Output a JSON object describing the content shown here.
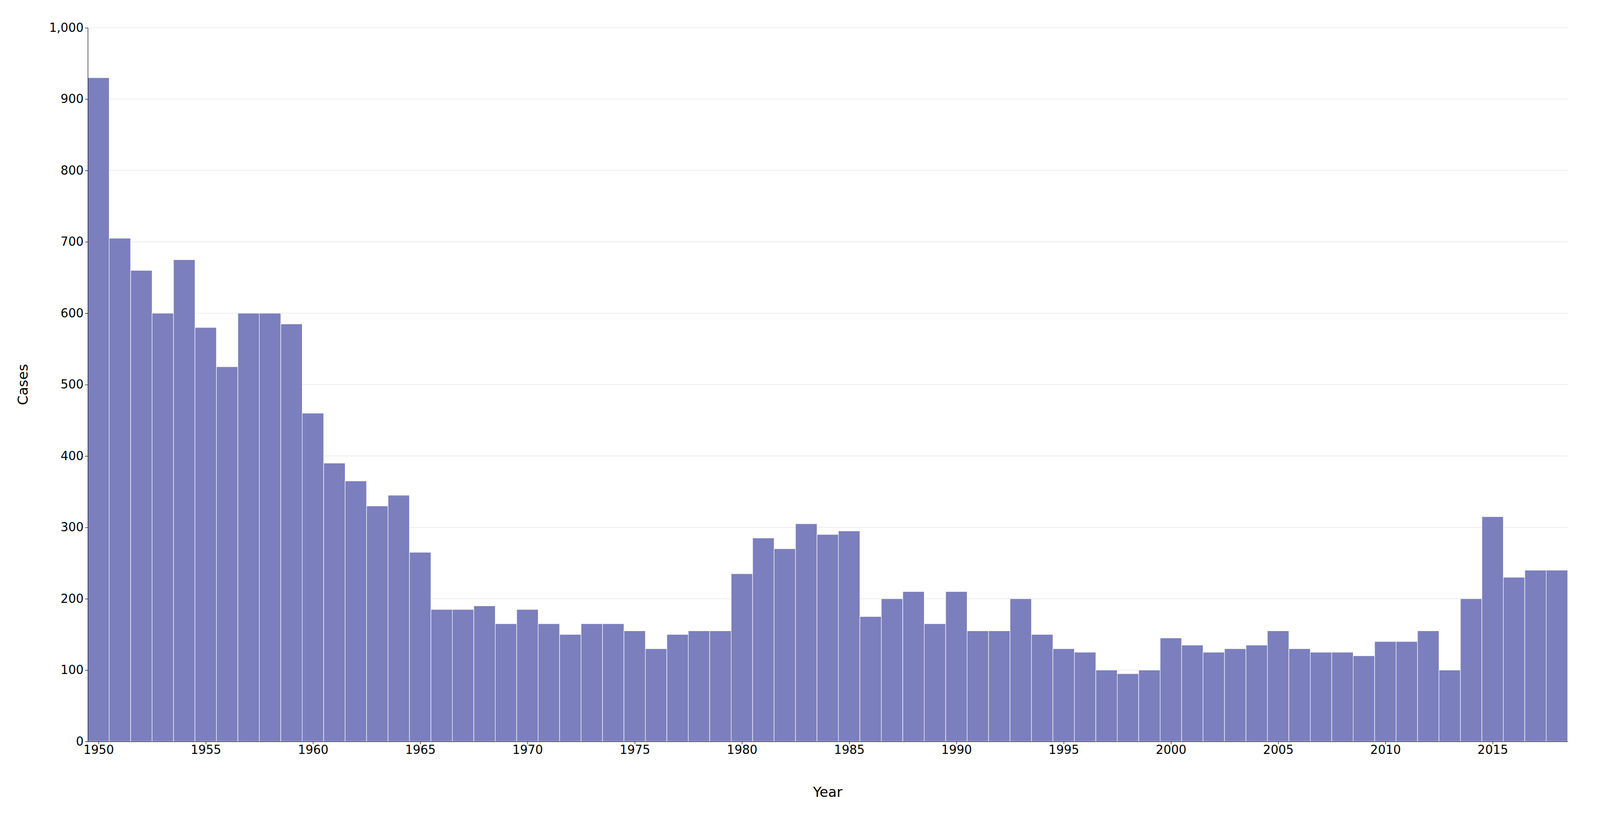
{
  "chart_data": {
    "type": "bar",
    "x": [
      1950,
      1951,
      1952,
      1953,
      1954,
      1955,
      1956,
      1957,
      1958,
      1959,
      1960,
      1961,
      1962,
      1963,
      1964,
      1965,
      1966,
      1967,
      1968,
      1969,
      1970,
      1971,
      1972,
      1973,
      1974,
      1975,
      1976,
      1977,
      1978,
      1979,
      1980,
      1981,
      1982,
      1983,
      1984,
      1985,
      1986,
      1987,
      1988,
      1989,
      1990,
      1991,
      1992,
      1993,
      1994,
      1995,
      1996,
      1997,
      1998,
      1999,
      2000,
      2001,
      2002,
      2003,
      2004,
      2005,
      2006,
      2007,
      2008,
      2009,
      2010,
      2011,
      2012,
      2013,
      2014,
      2015,
      2016,
      2017,
      2018
    ],
    "values": [
      930,
      705,
      660,
      600,
      675,
      580,
      525,
      600,
      600,
      585,
      460,
      390,
      365,
      330,
      345,
      265,
      185,
      185,
      190,
      165,
      185,
      165,
      150,
      165,
      165,
      155,
      130,
      150,
      155,
      155,
      235,
      285,
      270,
      305,
      290,
      295,
      175,
      200,
      210,
      165,
      210,
      155,
      155,
      200,
      150,
      130,
      125,
      100,
      95,
      100,
      145,
      135,
      125,
      130,
      135,
      155,
      130,
      125,
      125,
      120,
      140,
      140,
      155,
      100,
      200,
      315,
      230,
      240,
      240
    ],
    "color": "#7b7fbd",
    "xlabel": "Year",
    "ylabel": "Cases",
    "xlim": [
      1949.5,
      2018.5
    ],
    "xticks": [
      1950,
      1955,
      1960,
      1965,
      1970,
      1975,
      1980,
      1985,
      1990,
      1995,
      2000,
      2005,
      2010,
      2015
    ],
    "ylim": [
      0,
      1000
    ],
    "yticks": [
      0,
      100,
      200,
      300,
      400,
      500,
      600,
      700,
      800,
      900,
      {
        "value": 1000,
        "label": "1,000"
      }
    ],
    "grid": true
  }
}
